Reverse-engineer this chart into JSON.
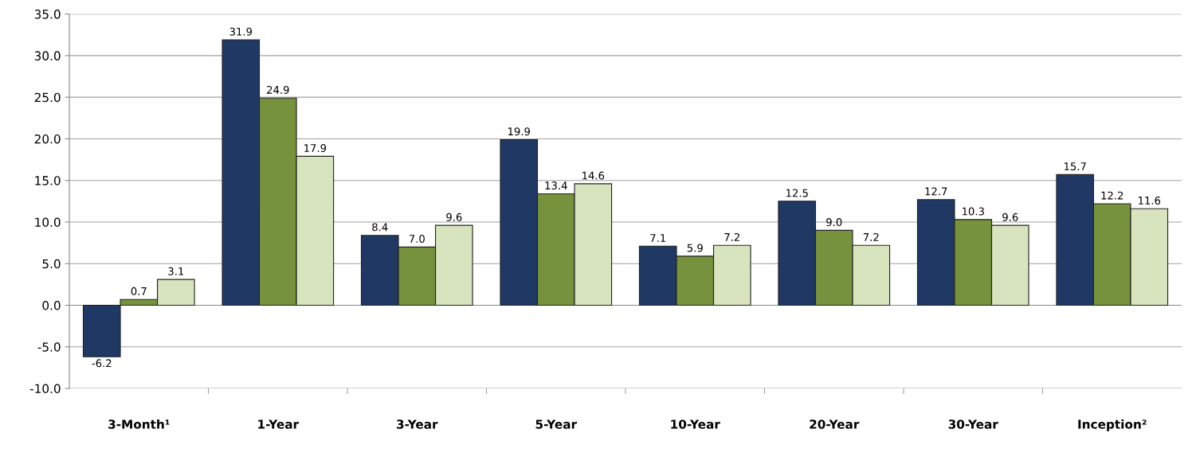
{
  "chart_data": {
    "type": "bar",
    "categories": [
      "3-Month¹",
      "1-Year",
      "3-Year",
      "5-Year",
      "10-Year",
      "20-Year",
      "30-Year",
      "Inception²"
    ],
    "series": [
      {
        "color": "#1f3864",
        "values": [
          -6.2,
          31.9,
          8.4,
          19.9,
          7.1,
          12.5,
          12.7,
          15.7
        ],
        "value_labels": [
          "-6.2",
          "31.9",
          "8.4",
          "19.9",
          "7.1",
          "12.5",
          "12.7",
          "15.7"
        ]
      },
      {
        "color": "#76923c",
        "values": [
          0.7,
          24.9,
          7.0,
          13.4,
          5.9,
          9.0,
          10.3,
          12.2
        ],
        "value_labels": [
          "0.7",
          "24.9",
          "7.0",
          "13.4",
          "5.9",
          "9.0",
          "10.3",
          "12.2"
        ]
      },
      {
        "color": "#d7e4bd",
        "values": [
          3.1,
          17.9,
          9.6,
          14.6,
          7.2,
          7.2,
          9.6,
          11.6
        ],
        "value_labels": [
          "3.1",
          "17.9",
          "9.6",
          "14.6",
          "7.2",
          "7.2",
          "9.6",
          "11.6"
        ]
      }
    ],
    "ylim": [
      -10,
      35
    ],
    "yticks": [
      {
        "value": -10,
        "label": "-10.0"
      },
      {
        "value": -5,
        "label": "-5.0"
      },
      {
        "value": 0,
        "label": "0.0"
      },
      {
        "value": 5,
        "label": "5.0"
      },
      {
        "value": 10,
        "label": "10.0"
      },
      {
        "value": 15,
        "label": "15.0"
      },
      {
        "value": 20,
        "label": "20.0"
      },
      {
        "value": 25,
        "label": "25.0"
      },
      {
        "value": 30,
        "label": "30.0"
      },
      {
        "value": 35,
        "label": "35.0"
      }
    ],
    "grid": "y",
    "legend": false
  }
}
